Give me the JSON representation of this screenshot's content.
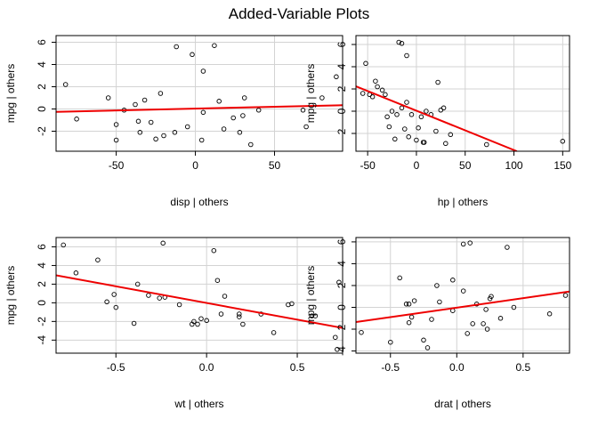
{
  "title": "Added-Variable Plots",
  "colors": {
    "points": "#000000",
    "fit_line": "#ee0000",
    "grid": "#d3d3d3",
    "frame": "#000000"
  },
  "chart_data": [
    {
      "type": "scatter",
      "xlabel": "disp | others",
      "ylabel": "mpg  | others",
      "xlim": [
        -88,
        93
      ],
      "ylim": [
        -3.8,
        6.6
      ],
      "xticks": [
        -50,
        0,
        50
      ],
      "xtick_labels": [
        "-50",
        "0",
        "50"
      ],
      "yticks": [
        -2,
        0,
        2,
        4,
        6
      ],
      "ytick_labels": [
        "-2",
        "0",
        "2",
        "4",
        "6"
      ],
      "grid": true,
      "fit_line": [
        [
          -88,
          -0.26
        ],
        [
          93,
          0.34
        ]
      ],
      "points": [
        [
          -82,
          2.2
        ],
        [
          -75,
          -0.9
        ],
        [
          -55,
          1.0
        ],
        [
          -50,
          -2.8
        ],
        [
          -50,
          -1.4
        ],
        [
          -45,
          -0.1
        ],
        [
          -38,
          0.4
        ],
        [
          -36,
          -1.1
        ],
        [
          -35,
          -2.1
        ],
        [
          -32,
          0.8
        ],
        [
          -28,
          -1.2
        ],
        [
          -25,
          -2.7
        ],
        [
          -22,
          1.4
        ],
        [
          -20,
          -2.4
        ],
        [
          -12,
          5.6
        ],
        [
          -13,
          -2.1
        ],
        [
          -5,
          -1.6
        ],
        [
          -2,
          4.9
        ],
        [
          4,
          -2.8
        ],
        [
          5,
          3.4
        ],
        [
          5,
          -0.3
        ],
        [
          12,
          5.7
        ],
        [
          15,
          0.7
        ],
        [
          18,
          -1.8
        ],
        [
          24,
          -0.8
        ],
        [
          28,
          -2.1
        ],
        [
          30,
          -0.6
        ],
        [
          31,
          1.0
        ],
        [
          35,
          -3.2
        ],
        [
          40,
          -0.1
        ],
        [
          68,
          -0.1
        ],
        [
          70,
          -1.6
        ],
        [
          80,
          1.0
        ],
        [
          89,
          2.9
        ]
      ]
    },
    {
      "type": "scatter",
      "xlabel": "hp | others",
      "ylabel": "mpg  | others",
      "xlim": [
        -62,
        157
      ],
      "ylim": [
        -3.6,
        6.8
      ],
      "xticks": [
        -50,
        0,
        50,
        100,
        150
      ],
      "xtick_labels": [
        "-50",
        "0",
        "50",
        "100",
        "150"
      ],
      "yticks": [
        -2,
        0,
        2,
        4,
        6
      ],
      "ytick_labels": [
        "-2",
        "0",
        "2",
        "4",
        "6"
      ],
      "grid": true,
      "fit_line": [
        [
          -62,
          2.24
        ],
        [
          103,
          -3.6
        ]
      ],
      "points": [
        [
          -55,
          1.6
        ],
        [
          -52,
          4.3
        ],
        [
          -48,
          1.5
        ],
        [
          -45,
          1.3
        ],
        [
          -42,
          2.7
        ],
        [
          -40,
          2.2
        ],
        [
          -35,
          1.9
        ],
        [
          -32,
          1.5
        ],
        [
          -30,
          -0.5
        ],
        [
          -28,
          -1.4
        ],
        [
          -25,
          0.0
        ],
        [
          -22,
          -2.5
        ],
        [
          -20,
          -0.3
        ],
        [
          -18,
          6.2
        ],
        [
          -15,
          6.1
        ],
        [
          -15,
          0.3
        ],
        [
          -12,
          -1.6
        ],
        [
          -10,
          5.0
        ],
        [
          -10,
          0.8
        ],
        [
          -8,
          -2.3
        ],
        [
          -5,
          -0.3
        ],
        [
          0,
          -2.6
        ],
        [
          2,
          -1.5
        ],
        [
          5,
          -0.5
        ],
        [
          7,
          -2.8
        ],
        [
          8,
          -2.8
        ],
        [
          10,
          0.0
        ],
        [
          15,
          -0.3
        ],
        [
          20,
          -1.8
        ],
        [
          22,
          2.6
        ],
        [
          25,
          0.1
        ],
        [
          28,
          0.3
        ],
        [
          30,
          -2.9
        ],
        [
          35,
          -2.1
        ],
        [
          72,
          -3.0
        ],
        [
          150,
          -2.7
        ]
      ]
    },
    {
      "type": "scatter",
      "xlabel": "wt | others",
      "ylabel": "mpg  | others",
      "xlim": [
        -0.83,
        0.75
      ],
      "ylim": [
        -5.4,
        7.0
      ],
      "xticks": [
        -0.5,
        0.0,
        0.5
      ],
      "xtick_labels": [
        "-0.5",
        "0.0",
        "0.5"
      ],
      "yticks": [
        -4,
        -2,
        0,
        2,
        4,
        6
      ],
      "ytick_labels": [
        "-4",
        "-2",
        "0",
        "2",
        "4",
        "6"
      ],
      "grid": true,
      "fit_line": [
        [
          -0.83,
          2.95
        ],
        [
          0.75,
          -2.7
        ]
      ],
      "points": [
        [
          -0.79,
          6.2
        ],
        [
          -0.72,
          3.2
        ],
        [
          -0.6,
          4.6
        ],
        [
          -0.55,
          0.1
        ],
        [
          -0.51,
          0.9
        ],
        [
          -0.5,
          -0.5
        ],
        [
          -0.4,
          -2.2
        ],
        [
          -0.38,
          2.0
        ],
        [
          -0.32,
          0.8
        ],
        [
          -0.26,
          0.5
        ],
        [
          -0.24,
          6.4
        ],
        [
          -0.23,
          0.6
        ],
        [
          -0.15,
          -0.2
        ],
        [
          -0.08,
          -2.3
        ],
        [
          -0.07,
          -2.0
        ],
        [
          -0.05,
          -2.3
        ],
        [
          -0.03,
          -1.7
        ],
        [
          0.0,
          -1.9
        ],
        [
          0.04,
          5.6
        ],
        [
          0.06,
          2.4
        ],
        [
          0.08,
          -1.2
        ],
        [
          0.1,
          0.7
        ],
        [
          0.18,
          -1.5
        ],
        [
          0.18,
          -1.2
        ],
        [
          0.2,
          -2.3
        ],
        [
          0.3,
          -1.2
        ],
        [
          0.37,
          -3.2
        ],
        [
          0.45,
          -0.2
        ],
        [
          0.47,
          -0.1
        ],
        [
          0.58,
          -1.4
        ],
        [
          0.6,
          -1.4
        ],
        [
          0.71,
          -3.7
        ],
        [
          0.72,
          -5.0
        ],
        [
          0.73,
          2.2
        ]
      ]
    },
    {
      "type": "scatter",
      "xlabel": "drat | others",
      "ylabel": "mpg  | others",
      "xlim": [
        -0.76,
        0.85
      ],
      "ylim": [
        -4.2,
        6.4
      ],
      "xticks": [
        -0.5,
        0.0,
        0.5
      ],
      "xtick_labels": [
        "-0.5",
        "0.0",
        "0.5"
      ],
      "yticks": [
        -4,
        -2,
        0,
        2,
        4,
        6
      ],
      "ytick_labels": [
        "-4",
        "-2",
        "0",
        "2",
        "4",
        "6"
      ],
      "grid": true,
      "fit_line": [
        [
          -0.76,
          -1.35
        ],
        [
          0.85,
          1.45
        ]
      ],
      "points": [
        [
          -0.72,
          -2.3
        ],
        [
          -0.5,
          -3.2
        ],
        [
          -0.43,
          2.7
        ],
        [
          -0.38,
          0.3
        ],
        [
          -0.36,
          0.3
        ],
        [
          -0.36,
          -1.4
        ],
        [
          -0.34,
          -0.9
        ],
        [
          -0.32,
          0.6
        ],
        [
          -0.25,
          -3.0
        ],
        [
          -0.22,
          -3.7
        ],
        [
          -0.19,
          -1.1
        ],
        [
          -0.15,
          2.0
        ],
        [
          -0.13,
          0.5
        ],
        [
          -0.03,
          2.5
        ],
        [
          -0.03,
          -0.3
        ],
        [
          0.05,
          1.5
        ],
        [
          0.05,
          5.8
        ],
        [
          0.08,
          -2.4
        ],
        [
          0.1,
          5.9
        ],
        [
          0.12,
          -1.5
        ],
        [
          0.15,
          0.3
        ],
        [
          0.2,
          -1.5
        ],
        [
          0.22,
          -0.2
        ],
        [
          0.23,
          -2.0
        ],
        [
          0.25,
          0.8
        ],
        [
          0.26,
          1.0
        ],
        [
          0.33,
          -1.0
        ],
        [
          0.38,
          5.5
        ],
        [
          0.43,
          0.0
        ],
        [
          0.7,
          -0.6
        ],
        [
          0.82,
          1.1
        ]
      ]
    }
  ]
}
